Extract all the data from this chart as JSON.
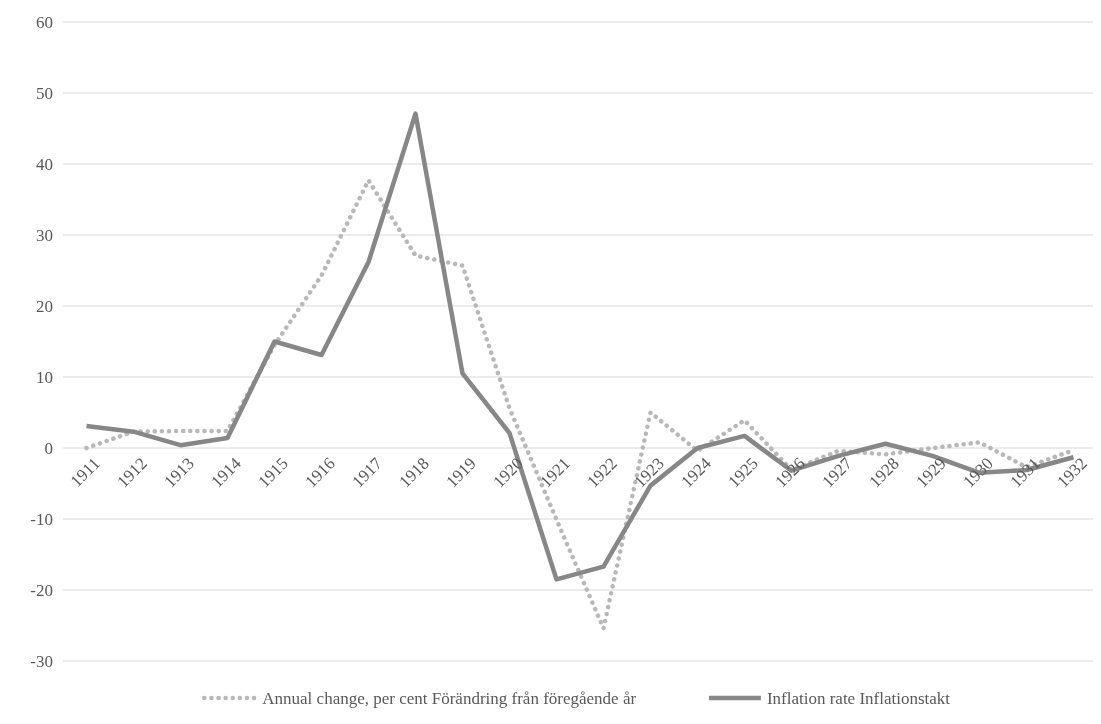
{
  "chart_data": {
    "type": "line",
    "categories": [
      "1911",
      "1912",
      "1913",
      "1914",
      "1915",
      "1916",
      "1917",
      "1918",
      "1919",
      "1920",
      "1921",
      "1922",
      "1923",
      "1924",
      "1925",
      "1926",
      "1927",
      "1928",
      "1929",
      "1930",
      "1931",
      "1932"
    ],
    "series": [
      {
        "name": "Annual change, per cent Förändring från föregående år",
        "color": "#b8b8b8",
        "line_style": "dotted",
        "values": [
          0,
          2.3,
          2.4,
          2.4,
          14.5,
          24.3,
          37.7,
          27.1,
          25.7,
          5.6,
          -10.1,
          -25.4,
          5.0,
          -0.4,
          3.9,
          -3.1,
          -0.4,
          -0.9,
          0,
          0.8,
          -2.7,
          -0.3
        ]
      },
      {
        "name": "Inflation rate Inflationstakt",
        "color": "#878787",
        "line_style": "solid",
        "values": [
          3.1,
          2.3,
          0.4,
          1.4,
          15.0,
          13.1,
          26.2,
          47.1,
          10.5,
          2.1,
          -18.5,
          -16.7,
          -5.3,
          0,
          1.7,
          -3.2,
          -1.1,
          0.6,
          -1.1,
          -3.5,
          -3.1,
          -1.3
        ]
      }
    ],
    "ylim": [
      -30,
      60
    ],
    "yticks": [
      -30,
      -20,
      -10,
      0,
      10,
      20,
      30,
      40,
      50,
      60
    ],
    "grid": "y",
    "legend": "bottom",
    "marker": "none"
  }
}
